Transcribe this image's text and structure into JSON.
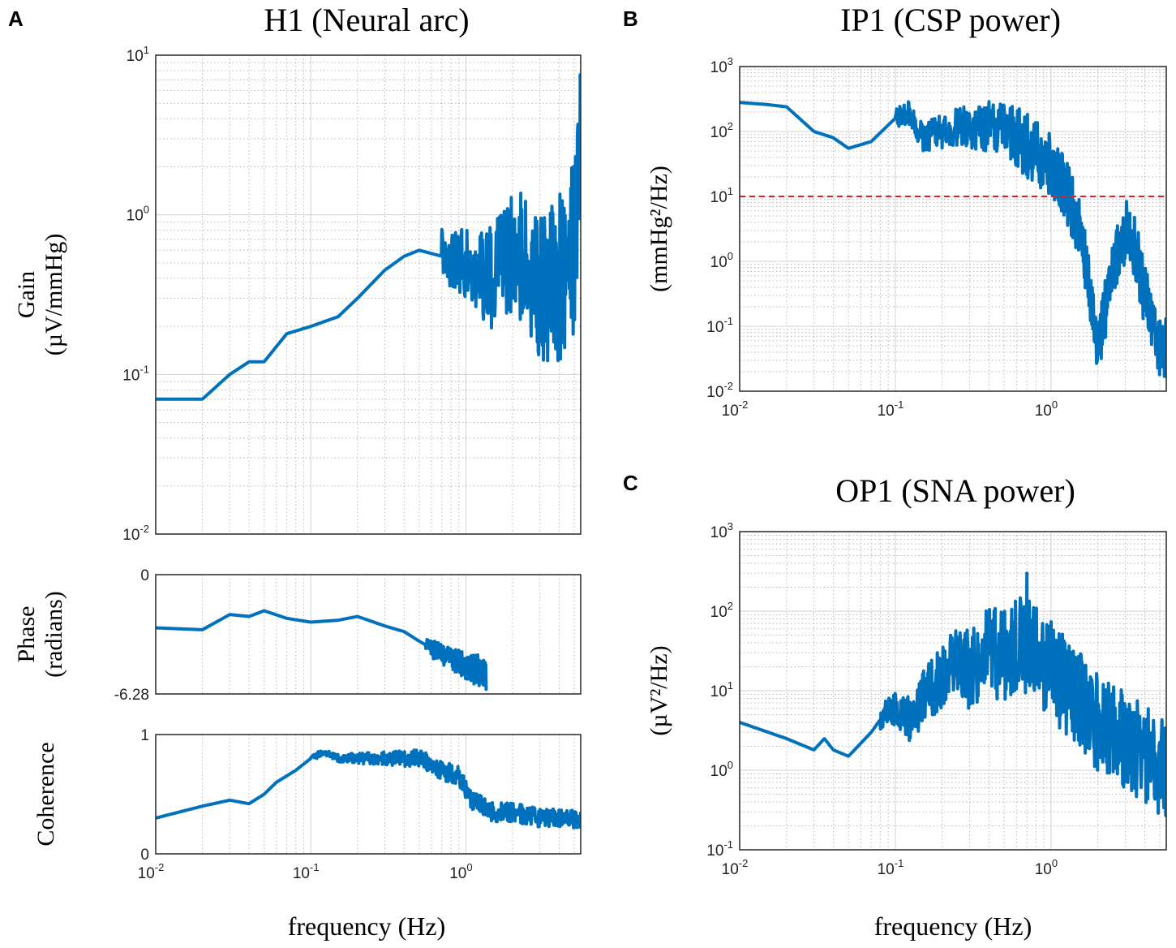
{
  "panels": {
    "A": {
      "letter": "A",
      "title": "H1 (Neural arc)"
    },
    "B": {
      "letter": "B",
      "title": "IP1 (CSP power)"
    },
    "C": {
      "letter": "C",
      "title": "OP1 (SNA power)"
    }
  },
  "xlabel": "frequency (Hz)",
  "colors": {
    "series": "#0072BD",
    "threshold": "#D62728"
  },
  "chart_data": [
    {
      "id": "gain",
      "type": "line",
      "title": "H1 (Neural arc)",
      "xlabel": "",
      "ylabel": [
        "Gain",
        "(µV/mmHg)"
      ],
      "xscale": "log",
      "yscale": "log",
      "xlim": [
        0.01,
        5.5
      ],
      "ylim": [
        0.01,
        10
      ],
      "xticks": [
        [
          "10",
          "-2"
        ],
        [
          "10",
          "-1"
        ],
        [
          "10",
          "0"
        ]
      ],
      "xticklabels_shown": false,
      "yticks": [
        [
          "10",
          "-2"
        ],
        [
          "10",
          "-1"
        ],
        [
          "10",
          "0"
        ],
        [
          "10",
          "1"
        ]
      ],
      "series": [
        {
          "name": "Gain",
          "noise_start": 0.7,
          "noise_amp": 0.4,
          "x": [
            0.01,
            0.02,
            0.03,
            0.04,
            0.05,
            0.07,
            0.1,
            0.15,
            0.2,
            0.3,
            0.4,
            0.5,
            0.7,
            1.0,
            1.5,
            2.0,
            2.5,
            3.0,
            4.0,
            5.0,
            5.5
          ],
          "y": [
            0.07,
            0.07,
            0.1,
            0.12,
            0.12,
            0.18,
            0.2,
            0.23,
            0.3,
            0.45,
            0.55,
            0.6,
            0.55,
            0.5,
            0.4,
            0.6,
            0.5,
            0.35,
            0.4,
            0.6,
            4.0
          ]
        }
      ]
    },
    {
      "id": "phase",
      "type": "line",
      "ylabel": [
        "Phase",
        "(radians)"
      ],
      "xscale": "log",
      "yscale": "linear",
      "xlim": [
        0.01,
        5.5
      ],
      "ylim": [
        -6.28,
        0
      ],
      "ytick_values": [
        -6.28,
        0
      ],
      "yticks": [
        [
          "-6.28",
          ""
        ],
        [
          "0",
          ""
        ]
      ],
      "xticks": [
        [
          "10",
          "-2"
        ],
        [
          "10",
          "-1"
        ],
        [
          "10",
          "0"
        ]
      ],
      "xticklabels_shown": false,
      "series": [
        {
          "name": "Phase",
          "noise_start": 0.55,
          "noise_amp": 0.5,
          "wrap_start": 1.35,
          "x": [
            0.01,
            0.02,
            0.03,
            0.04,
            0.05,
            0.07,
            0.1,
            0.15,
            0.2,
            0.3,
            0.4,
            0.5,
            0.7,
            1.0,
            1.35
          ],
          "y": [
            -2.8,
            -2.9,
            -2.1,
            -2.2,
            -1.9,
            -2.3,
            -2.5,
            -2.4,
            -2.2,
            -2.7,
            -3.0,
            -3.5,
            -4.2,
            -4.8,
            -5.2
          ]
        }
      ]
    },
    {
      "id": "coherence",
      "type": "line",
      "ylabel": [
        "Coherence"
      ],
      "xscale": "log",
      "yscale": "linear",
      "xlim": [
        0.01,
        5.5
      ],
      "ylim": [
        0,
        1
      ],
      "ytick_values": [
        0,
        1
      ],
      "yticks": [
        [
          "0",
          ""
        ],
        [
          "1",
          ""
        ]
      ],
      "xticks": [
        [
          "10",
          "-2"
        ],
        [
          "10",
          "-1"
        ],
        [
          "10",
          "0"
        ]
      ],
      "xticklabels_shown": true,
      "series": [
        {
          "name": "Coherence",
          "noise_start": 0.1,
          "noise_amp": 0.18,
          "x": [
            0.01,
            0.02,
            0.03,
            0.04,
            0.05,
            0.06,
            0.08,
            0.1,
            0.12,
            0.15,
            0.2,
            0.3,
            0.5,
            0.7,
            0.9,
            1.1,
            1.5,
            2.0,
            3.0,
            5.5
          ],
          "y": [
            0.3,
            0.4,
            0.45,
            0.42,
            0.5,
            0.6,
            0.7,
            0.8,
            0.85,
            0.8,
            0.8,
            0.8,
            0.8,
            0.7,
            0.65,
            0.45,
            0.35,
            0.35,
            0.3,
            0.3
          ]
        }
      ]
    },
    {
      "id": "ip1",
      "type": "line",
      "title": "IP1 (CSP power)",
      "xlabel": "",
      "ylabel": [
        "(mmHg²/Hz)"
      ],
      "xscale": "log",
      "yscale": "log",
      "xlim": [
        0.01,
        5.5
      ],
      "ylim": [
        0.01,
        1000
      ],
      "yticks": [
        [
          "10",
          "-2"
        ],
        [
          "10",
          "-1"
        ],
        [
          "10",
          "0"
        ],
        [
          "10",
          "1"
        ],
        [
          "10",
          "2"
        ],
        [
          "10",
          "3"
        ]
      ],
      "xticks": [
        [
          "10",
          "-2"
        ],
        [
          "10",
          "-1"
        ],
        [
          "10",
          "0"
        ]
      ],
      "xticklabels_shown": true,
      "threshold": 10,
      "series": [
        {
          "name": "CSP power",
          "noise_start": 0.1,
          "noise_amp": 0.35,
          "x": [
            0.01,
            0.015,
            0.02,
            0.03,
            0.04,
            0.05,
            0.07,
            0.1,
            0.12,
            0.15,
            0.2,
            0.3,
            0.5,
            0.7,
            1.0,
            1.3,
            1.6,
            1.8,
            2.0,
            2.5,
            3.0,
            3.5,
            4.0,
            5.0,
            5.5
          ],
          "y": [
            280,
            260,
            240,
            100,
            80,
            55,
            70,
            160,
            200,
            80,
            100,
            120,
            120,
            60,
            30,
            10,
            2,
            0.3,
            0.05,
            0.7,
            3,
            1.5,
            0.3,
            0.05,
            0.05
          ]
        }
      ]
    },
    {
      "id": "op1",
      "type": "line",
      "title": "OP1 (SNA power)",
      "xlabel": "frequency (Hz)",
      "ylabel": [
        "(µV²/Hz)"
      ],
      "xscale": "log",
      "yscale": "log",
      "xlim": [
        0.01,
        5.5
      ],
      "ylim": [
        0.1,
        1000
      ],
      "yticks": [
        [
          "10",
          "-1"
        ],
        [
          "10",
          "0"
        ],
        [
          "10",
          "1"
        ],
        [
          "10",
          "2"
        ],
        [
          "10",
          "3"
        ]
      ],
      "xticks": [
        [
          "10",
          "-2"
        ],
        [
          "10",
          "-1"
        ],
        [
          "10",
          "0"
        ]
      ],
      "xticklabels_shown": true,
      "series": [
        {
          "name": "SNA power",
          "noise_start": 0.08,
          "noise_amp": 0.45,
          "x": [
            0.01,
            0.02,
            0.03,
            0.035,
            0.04,
            0.05,
            0.07,
            0.09,
            0.1,
            0.13,
            0.15,
            0.2,
            0.25,
            0.3,
            0.4,
            0.5,
            0.6,
            0.7,
            0.8,
            1.0,
            1.5,
            2.0,
            3.0,
            4.0,
            5.5
          ],
          "y": [
            4,
            2.5,
            1.8,
            2.5,
            1.8,
            1.5,
            3,
            6,
            6,
            4,
            8,
            15,
            25,
            18,
            35,
            25,
            35,
            40,
            30,
            18,
            8,
            4,
            2.5,
            1.5,
            1
          ]
        }
      ],
      "peak": {
        "x": 0.7,
        "y": 300
      }
    }
  ]
}
